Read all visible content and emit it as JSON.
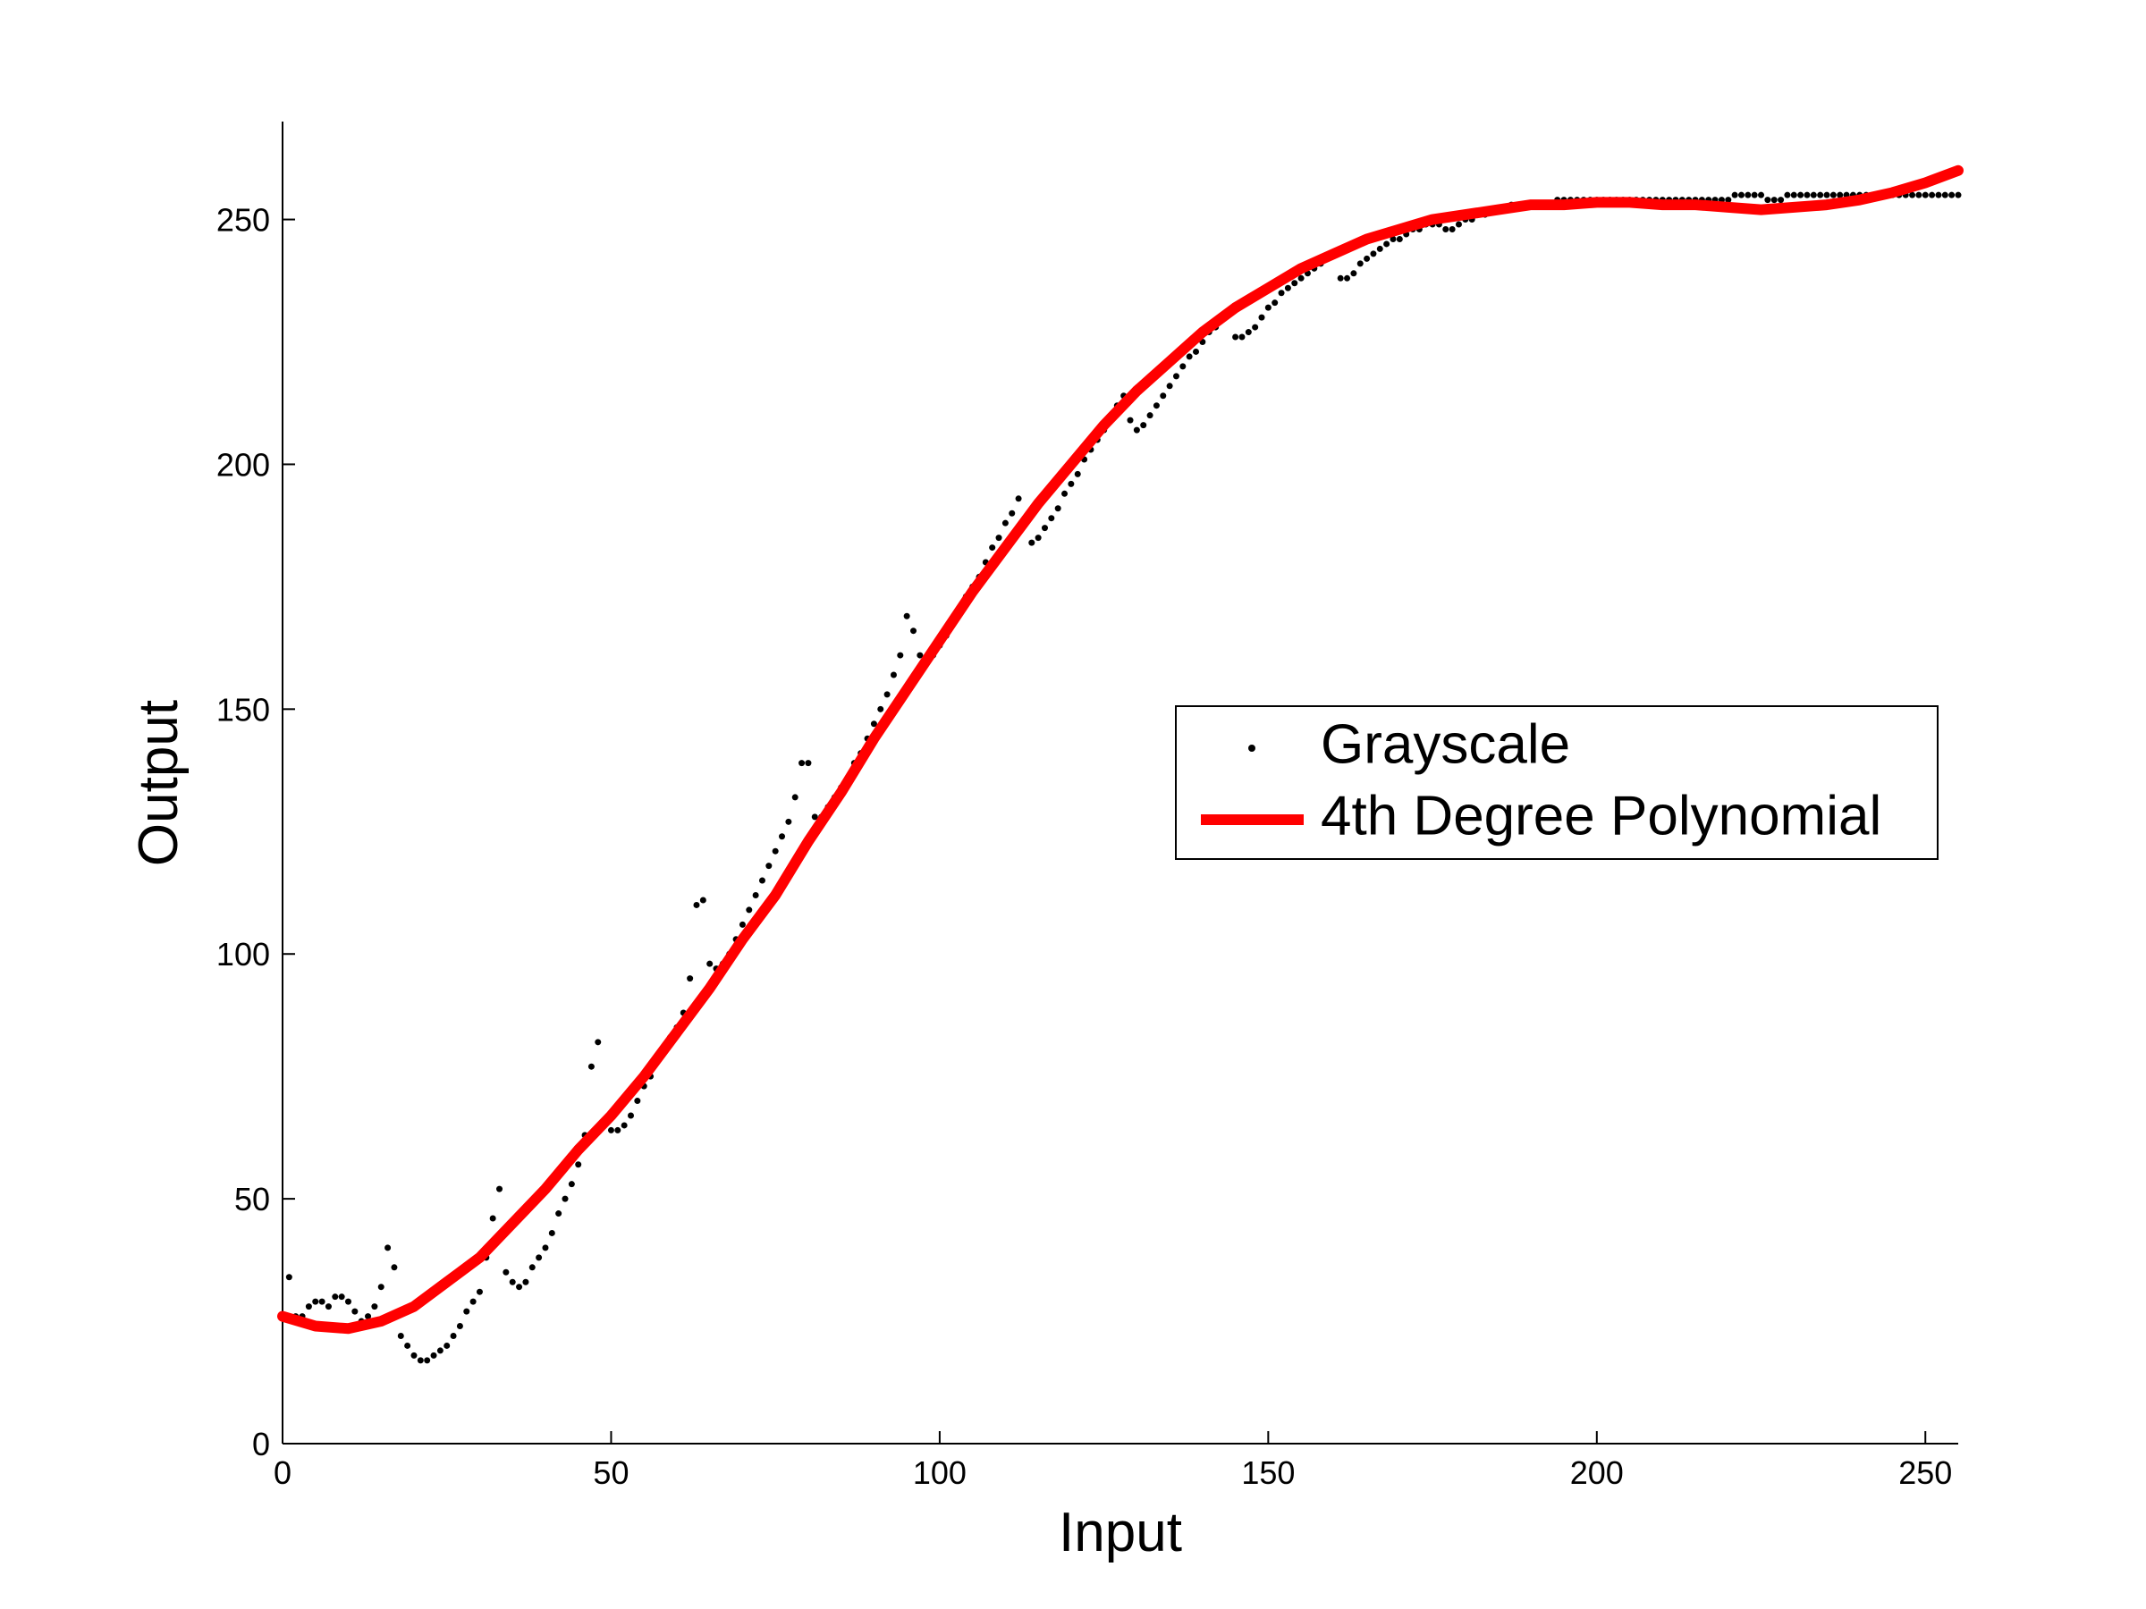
{
  "chart_data": {
    "type": "scatter",
    "xlabel": "Input",
    "ylabel": "Output",
    "xlim": [
      0,
      255
    ],
    "ylim": [
      0,
      270
    ],
    "xticks": [
      0,
      50,
      100,
      150,
      200,
      250
    ],
    "yticks": [
      0,
      50,
      100,
      150,
      200,
      250
    ],
    "grid": false,
    "legend": "east",
    "series": [
      {
        "name": "Grayscale",
        "type": "scatter",
        "color": "#000000",
        "x": [
          1,
          2,
          3,
          4,
          5,
          6,
          7,
          8,
          9,
          10,
          11,
          12,
          13,
          14,
          15,
          16,
          17,
          18,
          19,
          20,
          21,
          22,
          23,
          24,
          25,
          26,
          27,
          28,
          29,
          30,
          31,
          32,
          33,
          34,
          35,
          36,
          37,
          38,
          39,
          40,
          41,
          42,
          43,
          44,
          45,
          46,
          47,
          48,
          49,
          50,
          51,
          52,
          53,
          54,
          55,
          56,
          57,
          58,
          59,
          60,
          61,
          62,
          63,
          64,
          65,
          66,
          67,
          68,
          69,
          70,
          71,
          72,
          73,
          74,
          75,
          76,
          77,
          78,
          79,
          80,
          81,
          82,
          83,
          84,
          85,
          86,
          87,
          88,
          89,
          90,
          91,
          92,
          93,
          94,
          95,
          96,
          97,
          98,
          99,
          100,
          101,
          102,
          103,
          104,
          105,
          106,
          107,
          108,
          109,
          110,
          111,
          112,
          113,
          114,
          115,
          116,
          117,
          118,
          119,
          120,
          121,
          122,
          123,
          124,
          125,
          126,
          127,
          128,
          129,
          130,
          131,
          132,
          133,
          134,
          135,
          136,
          137,
          138,
          139,
          140,
          141,
          142,
          143,
          144,
          145,
          146,
          147,
          148,
          149,
          150,
          151,
          152,
          153,
          154,
          155,
          156,
          157,
          158,
          159,
          160,
          161,
          162,
          163,
          164,
          165,
          166,
          167,
          168,
          169,
          170,
          171,
          172,
          173,
          174,
          175,
          176,
          177,
          178,
          179,
          180,
          181,
          182,
          183,
          184,
          185,
          186,
          187,
          188,
          189,
          190,
          191,
          192,
          193,
          194,
          195,
          196,
          197,
          198,
          199,
          200,
          201,
          202,
          203,
          204,
          205,
          206,
          207,
          208,
          209,
          210,
          211,
          212,
          213,
          214,
          215,
          216,
          217,
          218,
          219,
          220,
          221,
          222,
          223,
          224,
          225,
          226,
          227,
          228,
          229,
          230,
          231,
          232,
          233,
          234,
          235,
          236,
          237,
          238,
          239,
          240,
          241,
          242,
          243,
          244,
          245,
          246,
          247,
          248,
          249,
          250,
          251,
          252,
          253,
          254,
          255
        ],
        "values": [
          34,
          26,
          26,
          28,
          29,
          29,
          28,
          30,
          30,
          29,
          27,
          25,
          26,
          28,
          32,
          40,
          36,
          22,
          20,
          18,
          17,
          17,
          18,
          19,
          20,
          22,
          24,
          27,
          29,
          31,
          38,
          46,
          52,
          35,
          33,
          32,
          33,
          36,
          38,
          40,
          43,
          47,
          50,
          53,
          57,
          63,
          77,
          82,
          65,
          64,
          64,
          65,
          67,
          70,
          73,
          75,
          78,
          80,
          83,
          85,
          88,
          95,
          110,
          111,
          98,
          97,
          98,
          100,
          103,
          106,
          109,
          112,
          115,
          118,
          121,
          124,
          127,
          132,
          139,
          139,
          128,
          128,
          130,
          132,
          134,
          136,
          139,
          141,
          144,
          147,
          150,
          153,
          157,
          161,
          169,
          166,
          161,
          160,
          161,
          163,
          165,
          168,
          170,
          173,
          175,
          177,
          180,
          183,
          185,
          188,
          190,
          193,
          189,
          184,
          185,
          187,
          189,
          191,
          194,
          196,
          198,
          201,
          203,
          205,
          207,
          209,
          212,
          214,
          209,
          207,
          208,
          210,
          212,
          214,
          216,
          218,
          220,
          222,
          223,
          225,
          227,
          228,
          230,
          231,
          226,
          226,
          227,
          228,
          230,
          232,
          233,
          235,
          236,
          237,
          238,
          239,
          240,
          241,
          242,
          243,
          238,
          238,
          239,
          241,
          242,
          243,
          244,
          245,
          246,
          246,
          247,
          248,
          248,
          249,
          249,
          249,
          248,
          248,
          249,
          250,
          250,
          251,
          251,
          252,
          252,
          252,
          253,
          253,
          253,
          253,
          253,
          253,
          253,
          254,
          254,
          254,
          254,
          254,
          254,
          254,
          254,
          254,
          254,
          254,
          254,
          254,
          254,
          254,
          254,
          254,
          254,
          254,
          254,
          254,
          254,
          254,
          254,
          254,
          254,
          254,
          255,
          255,
          255,
          255,
          255,
          254,
          254,
          254,
          255,
          255,
          255,
          255,
          255,
          255,
          255,
          255,
          255,
          255,
          255,
          255,
          255,
          255,
          255,
          255,
          255,
          255,
          255,
          255,
          255,
          255,
          255,
          255,
          255,
          255,
          255
        ]
      },
      {
        "name": "4th Degree Polynomial",
        "type": "line",
        "color": "#ff0000",
        "x": [
          0,
          5,
          10,
          15,
          20,
          25,
          30,
          35,
          40,
          45,
          50,
          55,
          60,
          65,
          70,
          75,
          80,
          85,
          90,
          95,
          100,
          105,
          110,
          115,
          120,
          125,
          130,
          135,
          140,
          145,
          150,
          155,
          160,
          165,
          170,
          175,
          180,
          185,
          190,
          195,
          200,
          205,
          210,
          215,
          220,
          225,
          230,
          235,
          240,
          245,
          250,
          255
        ],
        "values": [
          26,
          24,
          23.5,
          25,
          28,
          33,
          38,
          45,
          52,
          60,
          67,
          75,
          84,
          93,
          103,
          112,
          123,
          133,
          144,
          154,
          164,
          174,
          183,
          192,
          200,
          208,
          215,
          221,
          227,
          232,
          236,
          240,
          243,
          246,
          248,
          250,
          251,
          252,
          253,
          253,
          253.5,
          253.5,
          253,
          253,
          252.5,
          252,
          252.5,
          253,
          254,
          255.5,
          257.5,
          260
        ]
      }
    ]
  }
}
